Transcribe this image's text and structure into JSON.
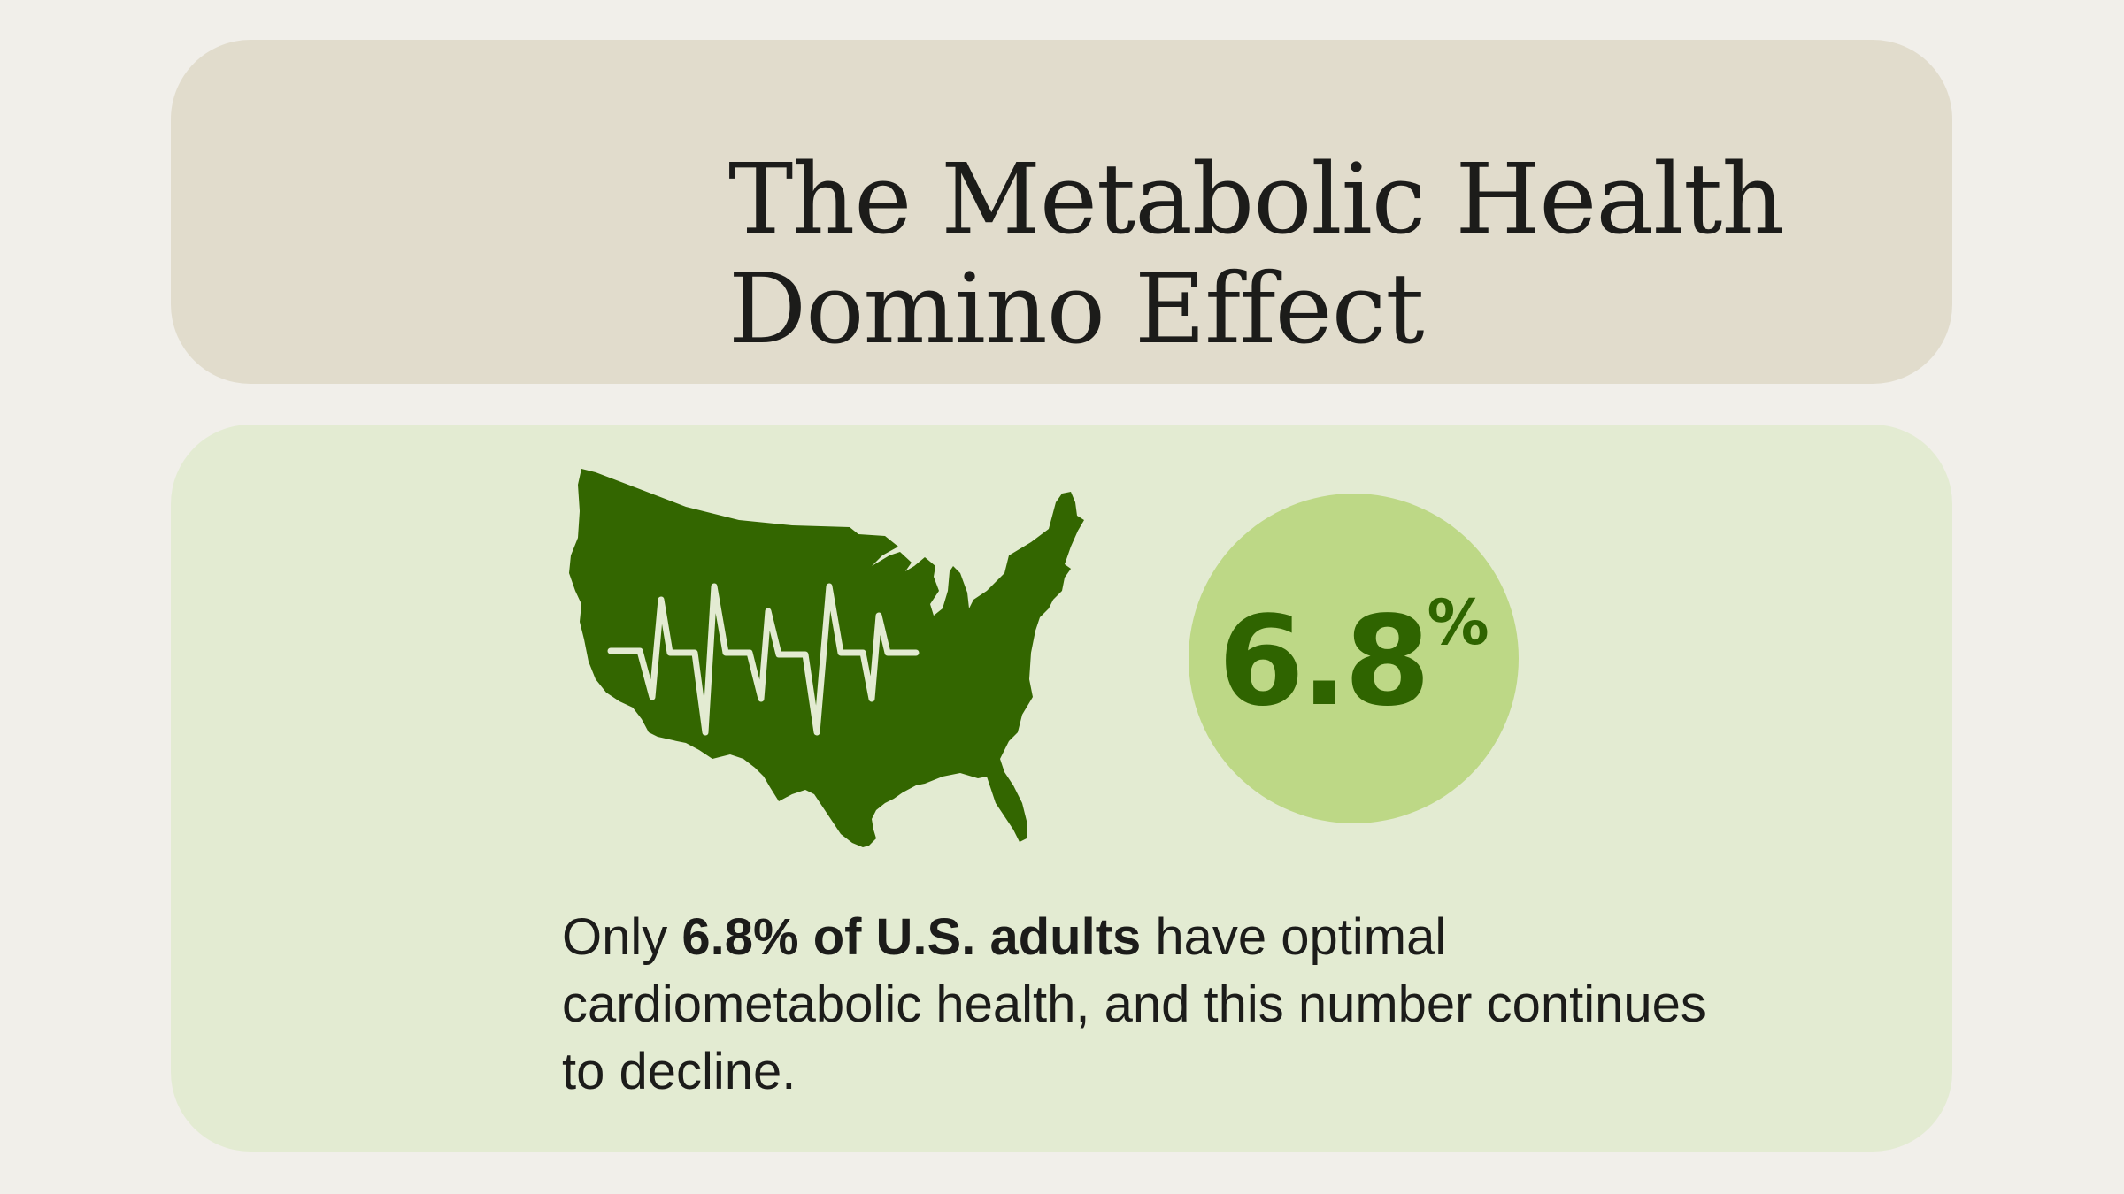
{
  "header": {
    "title_line1": "The Metabolic Health",
    "title_line2": "Domino Effect"
  },
  "stat": {
    "value": "6.8",
    "unit": "%",
    "icon": "us-map-heartbeat-icon",
    "description_pre": "Only ",
    "description_bold": "6.8% of U.S. adults",
    "description_post": " have optimal cardiometabolic health, and this number continues to decline."
  },
  "colors": {
    "background": "#f1efea",
    "title_card": "#e1dccc",
    "stat_card": "#e3ebd2",
    "map_green": "#336600",
    "circle_green": "#bdd886",
    "number_green": "#2f6400",
    "heartbeat": "#e3ebd2"
  }
}
